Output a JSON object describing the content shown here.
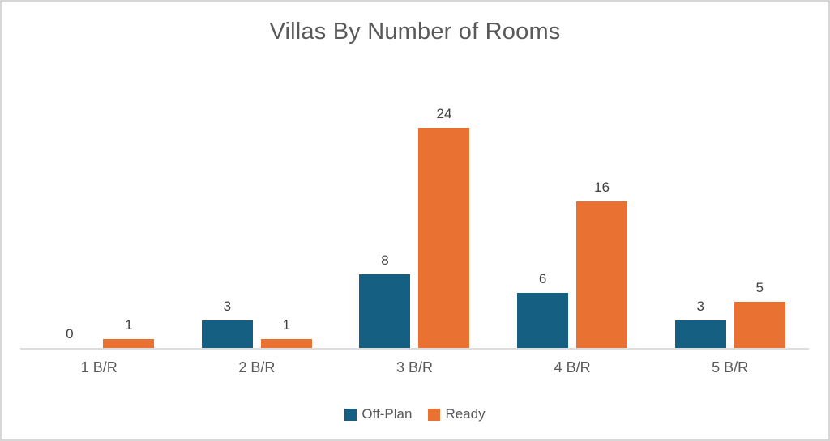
{
  "title": "Villas By Number of Rooms",
  "chart_data": {
    "type": "bar",
    "title": "Villas By Number of Rooms",
    "categories": [
      "1 B/R",
      "2 B/R",
      "3 B/R",
      "4 B/R",
      "5 B/R"
    ],
    "series": [
      {
        "name": "Off-Plan",
        "color": "#156082",
        "values": [
          0,
          3,
          8,
          6,
          3
        ]
      },
      {
        "name": "Ready",
        "color": "#E97132",
        "values": [
          1,
          1,
          24,
          16,
          5
        ]
      }
    ],
    "xlabel": "",
    "ylabel": "",
    "ylim": [
      0,
      24
    ],
    "grid": false,
    "data_labels": true,
    "legend_position": "bottom"
  },
  "colors": {
    "title_text": "#595959",
    "data_label_text": "#404040",
    "axis_label_text": "#595959",
    "axis_line": "#DDDDDD",
    "frame_border": "#D7D7D7",
    "background": "#FFFFFF"
  }
}
